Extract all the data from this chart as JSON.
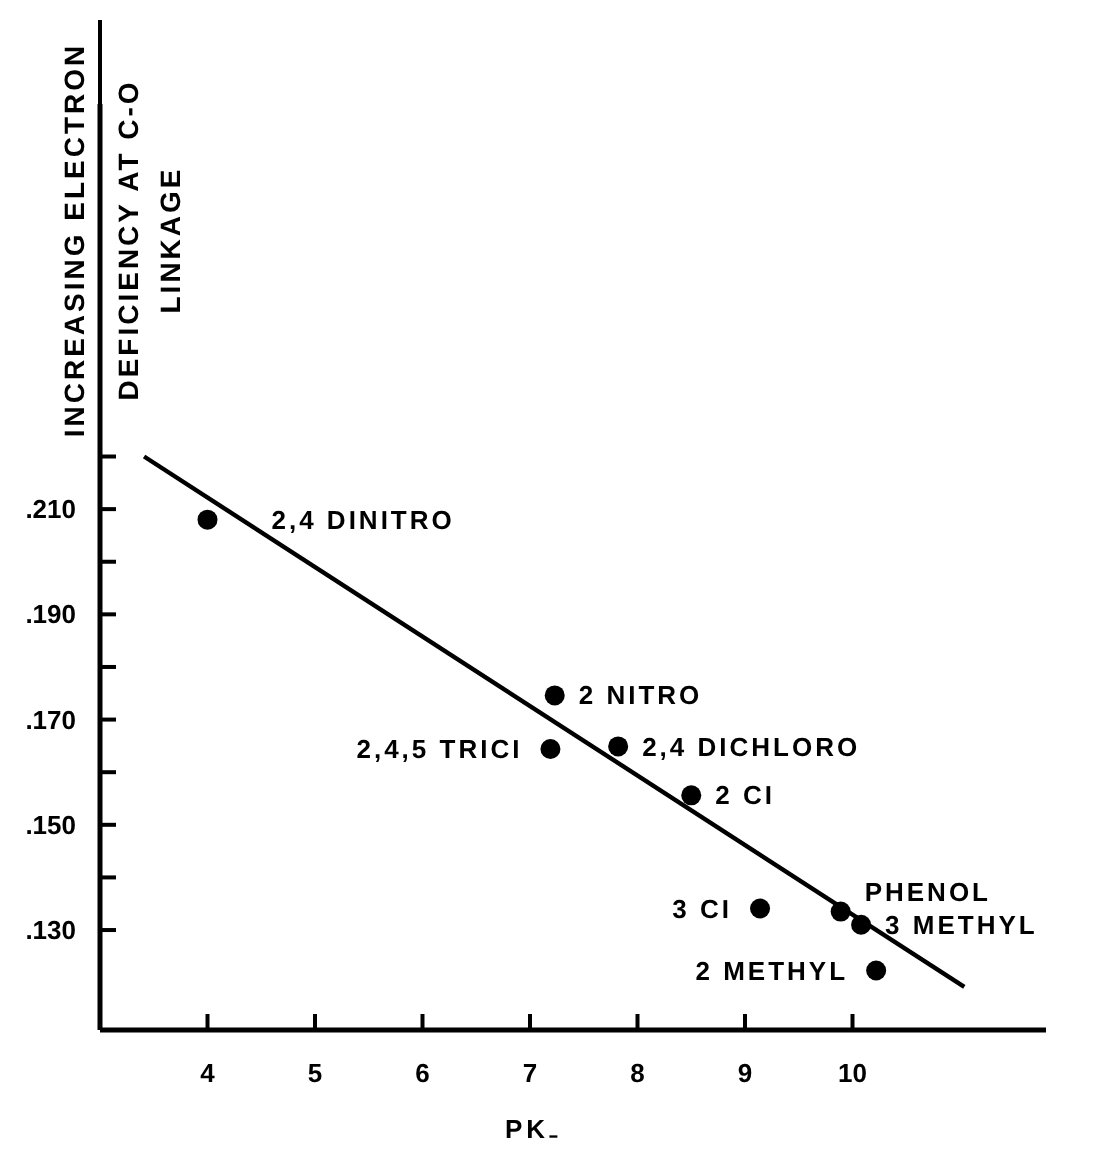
{
  "chart_data": {
    "type": "scatter",
    "xlabel": "PK₋",
    "ylabel": "INCREASING ELECTRON\nDEFICIENCY AT C-O\nLINKAGE",
    "xlim": [
      3.0,
      11.8
    ],
    "xticks": [
      4,
      5,
      6,
      7,
      8,
      9,
      10
    ],
    "ylim": [
      0.111,
      0.287
    ],
    "yticks": [
      {
        "value": 0.13,
        "label": ".130"
      },
      {
        "value": 0.14,
        "label": null
      },
      {
        "value": 0.15,
        "label": ".150"
      },
      {
        "value": 0.16,
        "label": null
      },
      {
        "value": 0.17,
        "label": ".170"
      },
      {
        "value": 0.18,
        "label": null
      },
      {
        "value": 0.19,
        "label": ".190"
      },
      {
        "value": 0.2,
        "label": null
      },
      {
        "value": 0.21,
        "label": ".210"
      },
      {
        "value": 0.22,
        "label": null
      }
    ],
    "grid": false,
    "marker": "circle",
    "series": [
      {
        "color": "#000000",
        "x": [
          4.0,
          7.23,
          7.19,
          7.82,
          8.5,
          9.14,
          9.89,
          10.08,
          10.22
        ],
        "values": [
          0.208,
          0.1746,
          0.1644,
          0.1649,
          0.1556,
          0.1341,
          0.1335,
          0.131,
          0.1223
        ]
      },
      {
        "type": "line",
        "color": "#000000",
        "marker": "none",
        "line_style": "solid",
        "x": [
          3.41,
          11.04
        ],
        "values": [
          0.22,
          0.1192
        ]
      }
    ],
    "annotations": [
      {
        "text": "2,4 DINITRO",
        "x": 4.0,
        "y": 0.208
      },
      {
        "text": "2 NITRO",
        "x": 7.23,
        "y": 0.1746
      },
      {
        "text": "2,4 DICHLORO",
        "x": 7.82,
        "y": 0.1649
      },
      {
        "text": "2,4,5 TRICI",
        "x": 7.19,
        "y": 0.1644
      },
      {
        "text": "2 CI",
        "x": 8.5,
        "y": 0.1556
      },
      {
        "text": "3 CI",
        "x": 9.14,
        "y": 0.1341
      },
      {
        "text": "PHENOL",
        "x": 9.89,
        "y": 0.1335
      },
      {
        "text": "3 METHYL",
        "x": 10.08,
        "y": 0.131
      },
      {
        "text": "2 METHYL",
        "x": 10.22,
        "y": 0.1223
      }
    ]
  }
}
